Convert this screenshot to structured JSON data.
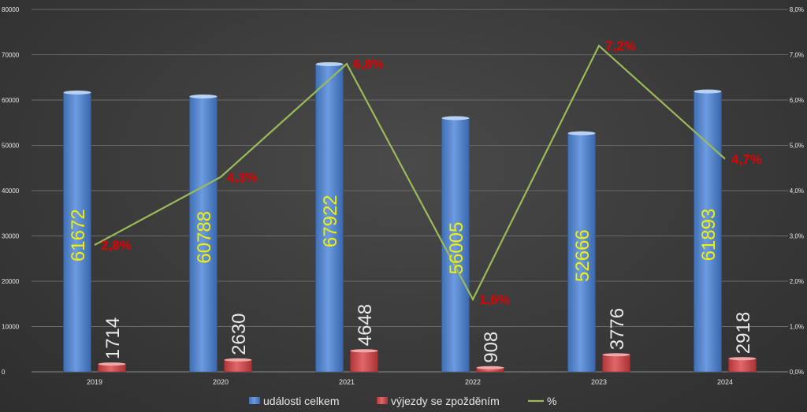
{
  "chart_data": {
    "type": "bar",
    "categories": [
      "2019",
      "2020",
      "2021",
      "2022",
      "2023",
      "2024"
    ],
    "series": [
      {
        "name": "události celkem",
        "kind": "bar",
        "axis": "left",
        "color": "#4f81c9",
        "values": [
          61672,
          60788,
          67922,
          56005,
          52666,
          61893
        ],
        "labels": [
          "61672",
          "60788",
          "67922",
          "56005",
          "52666",
          "61893"
        ]
      },
      {
        "name": "výjezdy se zpožděním",
        "kind": "bar",
        "axis": "left",
        "color": "#c9484a",
        "values": [
          1714,
          2630,
          4648,
          908,
          3776,
          2918
        ],
        "labels": [
          "1714",
          "2630",
          "4648",
          "908",
          "3776",
          "2918"
        ]
      },
      {
        "name": "%",
        "kind": "line",
        "axis": "right",
        "color": "#9bbb59",
        "values": [
          2.8,
          4.3,
          6.8,
          1.6,
          7.2,
          4.7
        ],
        "labels": [
          "2,8%",
          "4,3%",
          "6,8%",
          "1,6%",
          "7,2%",
          "4,7%"
        ]
      }
    ],
    "y_left": {
      "min": 0,
      "max": 80000,
      "step": 10000,
      "ticks": [
        "0",
        "10000",
        "20000",
        "30000",
        "40000",
        "50000",
        "60000",
        "70000",
        "80000"
      ]
    },
    "y_right": {
      "min": 0,
      "max": 8,
      "step": 1,
      "ticks": [
        "0,0%",
        "1,0%",
        "2,0%",
        "3,0%",
        "4,0%",
        "5,0%",
        "6,0%",
        "7,0%",
        "8,0%"
      ]
    },
    "grid": true,
    "legend_position": "bottom",
    "legend": [
      "události celkem",
      "výjezdy se zpožděním",
      "%"
    ]
  }
}
